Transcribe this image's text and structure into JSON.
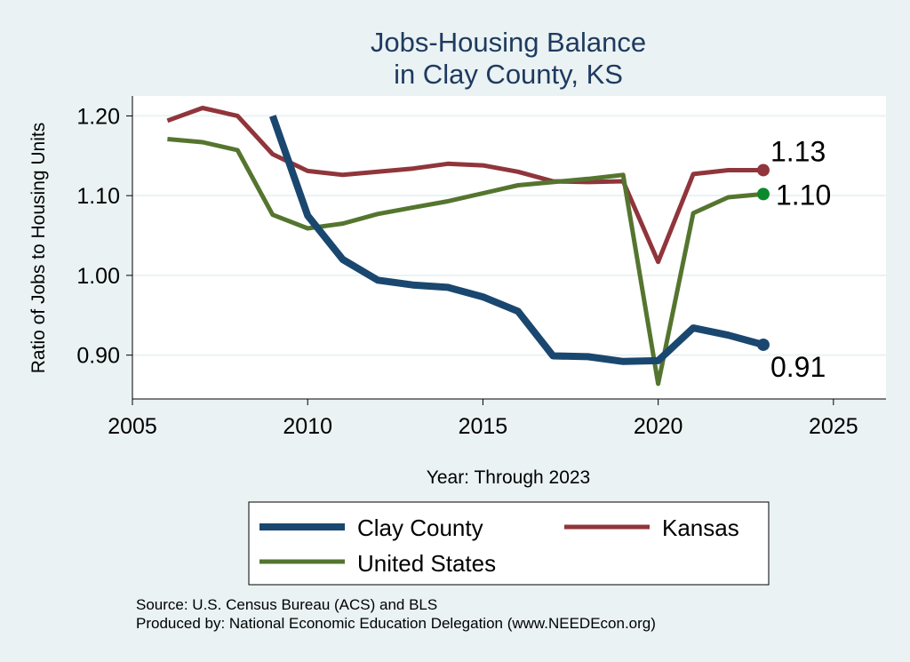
{
  "chart_data": {
    "type": "line",
    "title": [
      "Jobs-Housing Balance",
      "in Clay County, KS"
    ],
    "xlabel": "Year: Through 2023",
    "ylabel": "Ratio of Jobs to Housing Units",
    "xlim": [
      2005,
      2026.5
    ],
    "ylim": [
      0.845,
      1.225
    ],
    "x_ticks": [
      2005,
      2010,
      2015,
      2020,
      2025
    ],
    "y_ticks": [
      0.9,
      1.0,
      1.1,
      1.2
    ],
    "y_tick_labels": [
      "0.90",
      "1.00",
      "1.10",
      "1.20"
    ],
    "grid": true,
    "legend_position": "bottom",
    "series": [
      {
        "name": "Clay County",
        "color": "#1a476f",
        "x": [
          2009,
          2010,
          2011,
          2012,
          2013,
          2014,
          2015,
          2016,
          2017,
          2018,
          2019,
          2020,
          2021,
          2022,
          2023
        ],
        "values": [
          1.2,
          1.075,
          1.02,
          0.994,
          0.988,
          0.985,
          0.973,
          0.955,
          0.899,
          0.898,
          0.892,
          0.893,
          0.934,
          0.925,
          0.913
        ],
        "end_label": "0.91"
      },
      {
        "name": "Kansas",
        "color": "#90353b",
        "x": [
          2006,
          2007,
          2008,
          2009,
          2010,
          2011,
          2012,
          2013,
          2014,
          2015,
          2016,
          2017,
          2018,
          2019,
          2020,
          2021,
          2022,
          2023
        ],
        "values": [
          1.194,
          1.21,
          1.2,
          1.152,
          1.131,
          1.126,
          1.13,
          1.134,
          1.14,
          1.138,
          1.13,
          1.118,
          1.117,
          1.118,
          1.017,
          1.127,
          1.132,
          1.132
        ],
        "end_label": "1.13"
      },
      {
        "name": "United States",
        "color": "#55752f",
        "end_marker_color": "#0a8a2a",
        "x": [
          2006,
          2007,
          2008,
          2009,
          2010,
          2011,
          2012,
          2013,
          2014,
          2015,
          2016,
          2017,
          2018,
          2019,
          2020,
          2021,
          2022,
          2023
        ],
        "values": [
          1.171,
          1.167,
          1.157,
          1.076,
          1.059,
          1.065,
          1.077,
          1.085,
          1.093,
          1.103,
          1.113,
          1.117,
          1.121,
          1.126,
          0.864,
          1.078,
          1.098,
          1.102
        ],
        "end_label": "1.10"
      }
    ],
    "source": "Source: U.S. Census Bureau (ACS) and BLS",
    "producer": "Produced by: National Economic Education Delegation (www.NEEDEcon.org)"
  }
}
